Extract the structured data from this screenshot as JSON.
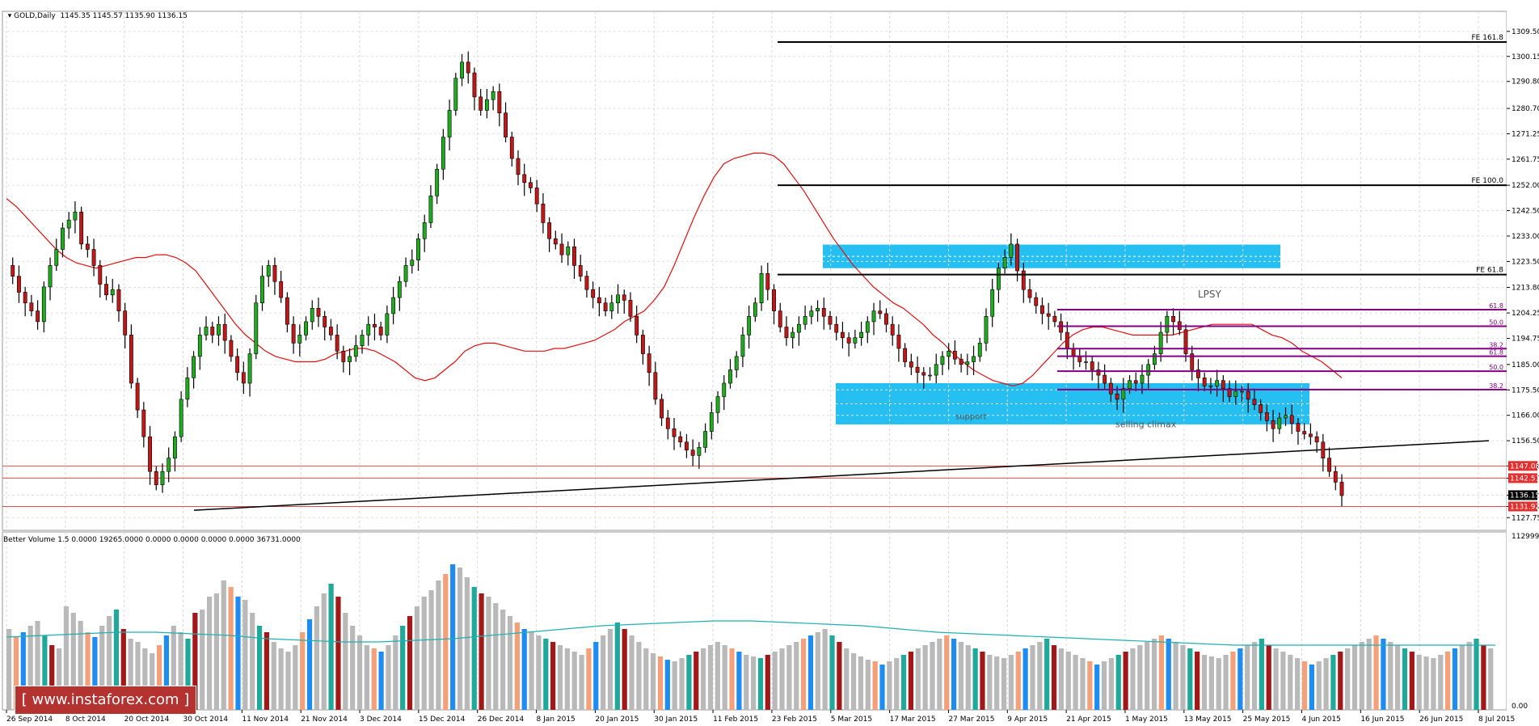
{
  "header": {
    "symbol": "GOLD,Daily",
    "ohlc": "1145.35 1145.57 1135.90 1136.15",
    "volume_indicator": "Better Volume 1.5 0.0000 19265.0000 0.0000 0.0000 0.0000 0.0000 36731.0000"
  },
  "logo": "[ www.instaforex.com ]",
  "colors": {
    "bull": "#1faa1f",
    "bear": "#c01818",
    "ma": "#e01010",
    "zone": "#00b4f0",
    "fib": "#800080",
    "volume_gray": "#b9b9b9",
    "volume_red": "#a01818",
    "volume_teal": "#20a89a",
    "volume_blue": "#1e8cf0",
    "volume_orange": "#f4a07a",
    "volume_ma": "#20b0b0",
    "level_line": "#e05050"
  },
  "chart_data": [
    {
      "type": "candlestick",
      "title": "GOLD,Daily",
      "ylim": [
        1123,
        1317
      ],
      "y_ticks": [
        "1309.50",
        "1300.15",
        "1290.80",
        "1280.70",
        "1271.25",
        "1261.75",
        "1252.00",
        "1242.50",
        "1233.00",
        "1223.50",
        "1213.80",
        "1204.25",
        "1194.75",
        "1185.00",
        "1175.50",
        "1166.00",
        "1156.50",
        "1147.08",
        "1142.51",
        "1136.15",
        "1131.92",
        "1127.75"
      ],
      "x_tick_labels": [
        "26 Sep 2014",
        "8 Oct 2014",
        "20 Oct 2014",
        "30 Oct 2014",
        "11 Nov 2014",
        "21 Nov 2014",
        "3 Dec 2014",
        "15 Dec 2014",
        "26 Dec 2014",
        "8 Jan 2015",
        "20 Jan 2015",
        "30 Jan 2015",
        "11 Feb 2015",
        "23 Feb 2015",
        "5 Mar 2015",
        "17 Mar 2015",
        "27 Mar 2015",
        "9 Apr 2015",
        "21 Apr 2015",
        "1 May 2015",
        "13 May 2015",
        "25 May 2015",
        "4 Jun 2015",
        "16 Jun 2015",
        "26 Jun 2015",
        "8 Jul 2015"
      ],
      "close_path": [
        1222,
        1218,
        1212,
        1208,
        1205,
        1201,
        1214,
        1222,
        1228,
        1236,
        1239,
        1242,
        1230,
        1228,
        1222,
        1215,
        1211,
        1213,
        1205,
        1196,
        1178,
        1168,
        1158,
        1145,
        1140,
        1145,
        1150,
        1158,
        1172,
        1180,
        1188,
        1196,
        1199,
        1196,
        1200,
        1194,
        1188,
        1182,
        1178,
        1189,
        1208,
        1218,
        1222,
        1216,
        1210,
        1200,
        1193,
        1196,
        1201,
        1206,
        1203,
        1199,
        1196,
        1190,
        1186,
        1188,
        1192,
        1196,
        1200,
        1199,
        1196,
        1204,
        1210,
        1216,
        1222,
        1224,
        1232,
        1238,
        1248,
        1258,
        1270,
        1280,
        1292,
        1298,
        1294,
        1285,
        1280,
        1284,
        1287,
        1279,
        1270,
        1262,
        1256,
        1253,
        1251,
        1245,
        1238,
        1232,
        1230,
        1226,
        1229,
        1222,
        1218,
        1213,
        1210,
        1208,
        1205,
        1208,
        1211,
        1209,
        1203,
        1196,
        1189,
        1182,
        1172,
        1165,
        1161,
        1158,
        1156,
        1153,
        1151,
        1154,
        1160,
        1167,
        1173,
        1178,
        1183,
        1188,
        1196,
        1203,
        1208,
        1219,
        1213,
        1205,
        1199,
        1195,
        1197,
        1200,
        1203,
        1205,
        1206,
        1203,
        1200,
        1197,
        1195,
        1193,
        1195,
        1197,
        1201,
        1205,
        1204,
        1200,
        1196,
        1191,
        1186,
        1184,
        1182,
        1181,
        1181,
        1185,
        1188,
        1190,
        1187,
        1185,
        1186,
        1188,
        1193,
        1203,
        1213,
        1221,
        1225,
        1230,
        1220,
        1213,
        1210,
        1207,
        1204,
        1203,
        1201,
        1197,
        1191,
        1188,
        1186,
        1186,
        1183,
        1181,
        1178,
        1174,
        1172,
        1176,
        1179,
        1178,
        1181,
        1185,
        1189,
        1197,
        1203,
        1201,
        1198,
        1189,
        1183,
        1180,
        1177,
        1177,
        1179,
        1176,
        1173,
        1175,
        1175,
        1172,
        1170,
        1167,
        1164,
        1161,
        1165,
        1166,
        1163,
        1160,
        1159,
        1158,
        1156,
        1150,
        1145,
        1141,
        1136
      ],
      "ma_path": [
        1247,
        1244,
        1240,
        1236,
        1232,
        1228,
        1225,
        1223,
        1222,
        1221,
        1222,
        1223,
        1224,
        1225,
        1225,
        1226,
        1226,
        1225,
        1223,
        1220,
        1215,
        1210,
        1205,
        1200,
        1196,
        1193,
        1190,
        1188,
        1187,
        1186,
        1186,
        1186,
        1187,
        1189,
        1190,
        1191,
        1191,
        1190,
        1188,
        1186,
        1183,
        1180,
        1179,
        1180,
        1183,
        1186,
        1190,
        1192,
        1193,
        1193,
        1192,
        1191,
        1190,
        1190,
        1190,
        1191,
        1191,
        1192,
        1193,
        1194,
        1196,
        1198,
        1201,
        1203,
        1205,
        1209,
        1214,
        1222,
        1231,
        1240,
        1248,
        1255,
        1260,
        1262,
        1263,
        1264,
        1264,
        1263,
        1260,
        1255,
        1250,
        1244,
        1238,
        1232,
        1227,
        1222,
        1218,
        1214,
        1211,
        1208,
        1206,
        1203,
        1200,
        1196,
        1193,
        1189,
        1186,
        1183,
        1181,
        1179,
        1178,
        1177,
        1178,
        1181,
        1185,
        1189,
        1193,
        1196,
        1198,
        1199,
        1199,
        1198,
        1197,
        1196,
        1196,
        1196,
        1196,
        1196,
        1197,
        1198,
        1199,
        1200,
        1200,
        1200,
        1200,
        1200,
        1198,
        1196,
        1195,
        1193,
        1190,
        1188,
        1186,
        1183,
        1180
      ],
      "levels": [
        {
          "label": "FE 161.8",
          "value": 1305.5
        },
        {
          "label": "FE 100.0",
          "value": 1252.0
        },
        {
          "label": "FE 61.8",
          "value": 1218.6
        }
      ],
      "fib_labels": [
        "61.8",
        "50.0",
        "38.2",
        "61.8",
        "50.0",
        "38.2"
      ],
      "fib_values": [
        1205.5,
        1199.3,
        1190.9,
        1188.1,
        1182.5,
        1175.6
      ],
      "price_lines": [
        1147.08,
        1142.51,
        1131.92
      ],
      "price_tags": [
        "1147.08",
        "1142.51",
        "1136.15",
        "1131.92"
      ],
      "zones": [
        {
          "from": 1221.0,
          "to": 1229.8
        },
        {
          "from": 1162.6,
          "to": 1178.0
        }
      ],
      "annotations": [
        "LPSY",
        "support",
        "selling climax"
      ],
      "trendline": {
        "from": 1130.5,
        "to": 1156.5
      }
    },
    {
      "type": "bar",
      "title": "Better Volume 1.5",
      "y_ticks": [
        "112999.9",
        "0.00"
      ],
      "values": [
        50,
        45,
        48,
        52,
        55,
        46,
        40,
        38,
        64,
        60,
        55,
        48,
        45,
        52,
        58,
        62,
        50,
        44,
        42,
        38,
        35,
        40,
        46,
        52,
        48,
        44,
        60,
        62,
        70,
        72,
        80,
        76,
        70,
        68,
        60,
        52,
        48,
        42,
        38,
        36,
        40,
        48,
        56,
        64,
        72,
        78,
        70,
        60,
        52,
        46,
        40,
        38,
        36,
        40,
        46,
        52,
        58,
        64,
        70,
        74,
        80,
        84,
        90,
        88,
        82,
        76,
        72,
        70,
        66,
        62,
        58,
        54,
        50,
        48,
        46,
        44,
        42,
        40,
        38,
        36,
        34,
        38,
        42,
        46,
        50,
        54,
        50,
        46,
        42,
        38,
        35,
        33,
        31,
        30,
        32,
        34,
        36,
        38,
        40,
        42,
        40,
        38,
        36,
        34,
        33,
        32,
        34,
        36,
        38,
        40,
        42,
        44,
        46,
        48,
        50,
        46,
        42,
        38,
        35,
        33,
        31,
        30,
        28,
        30,
        32,
        34,
        36,
        38,
        40,
        42,
        44,
        46,
        44,
        42,
        40,
        38,
        36,
        34,
        33,
        32,
        34,
        36,
        38,
        40,
        42,
        44,
        40,
        38,
        36,
        34,
        32,
        30,
        28,
        30,
        32,
        34,
        36,
        38,
        40,
        42,
        44,
        46,
        44,
        42,
        40,
        38,
        36,
        34,
        33,
        32,
        34,
        36,
        38,
        40,
        42,
        44,
        40,
        38,
        36,
        34,
        32,
        30,
        28,
        30,
        32,
        34,
        36,
        38,
        40,
        42,
        44,
        46,
        44,
        42,
        40,
        38,
        36,
        34,
        33,
        32,
        34,
        36,
        38,
        40,
        42,
        44,
        40,
        38
      ],
      "ma_values": [
        45,
        46,
        47,
        48,
        48,
        47,
        46,
        44,
        43,
        42,
        42,
        43,
        44,
        46,
        48,
        50,
        52,
        53,
        54,
        55,
        55,
        54,
        53,
        52,
        50,
        48,
        47,
        46,
        45,
        44,
        43,
        42,
        41,
        40,
        40,
        40,
        40,
        40,
        40,
        40,
        40
      ]
    }
  ]
}
